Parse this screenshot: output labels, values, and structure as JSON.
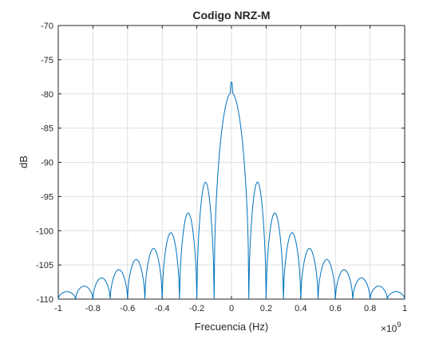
{
  "chart_data": {
    "type": "line",
    "title": "Codigo NRZ-M",
    "xlabel": "Frecuencia (Hz)",
    "ylabel": "dB",
    "x_multiplier_label": "×10",
    "x_multiplier_exponent": "9",
    "xlim": [
      -1,
      1
    ],
    "ylim": [
      -110,
      -70
    ],
    "grid": true,
    "x_ticks": [
      -1,
      -0.8,
      -0.6,
      -0.4,
      -0.2,
      0,
      0.2,
      0.4,
      0.6,
      0.8,
      1
    ],
    "x_tick_labels": [
      "-1",
      "-0.8",
      "-0.6",
      "-0.4",
      "-0.2",
      "0",
      "0.2",
      "0.4",
      "0.6",
      "0.8",
      "1"
    ],
    "y_ticks": [
      -70,
      -75,
      -80,
      -85,
      -90,
      -95,
      -100,
      -105,
      -110
    ],
    "y_tick_labels": [
      "-70",
      "-75",
      "-80",
      "-85",
      "-90",
      "-95",
      "-100",
      "-105",
      "-110"
    ],
    "line_color": "#0072BD",
    "series": [
      {
        "main_lobe_peak": {
          "x": 0,
          "y": -78.3
        },
        "main_lobe_nulls": [
          -0.1,
          0.1
        ],
        "side_lobe_spacing": 0.1,
        "side_lobe_peaks": [
          {
            "x": -0.95,
            "y": -108.9
          },
          {
            "x": -0.85,
            "y": -108.1
          },
          {
            "x": -0.75,
            "y": -106.9
          },
          {
            "x": -0.65,
            "y": -105.7
          },
          {
            "x": -0.55,
            "y": -104.2
          },
          {
            "x": -0.45,
            "y": -102.6
          },
          {
            "x": -0.35,
            "y": -100.3
          },
          {
            "x": -0.25,
            "y": -97.4
          },
          {
            "x": -0.15,
            "y": -92.9
          },
          {
            "x": 0.15,
            "y": -92.9
          },
          {
            "x": 0.25,
            "y": -97.4
          },
          {
            "x": 0.35,
            "y": -100.3
          },
          {
            "x": 0.45,
            "y": -102.6
          },
          {
            "x": 0.55,
            "y": -104.2
          },
          {
            "x": 0.65,
            "y": -105.7
          },
          {
            "x": 0.75,
            "y": -106.9
          },
          {
            "x": 0.85,
            "y": -108.1
          },
          {
            "x": 0.95,
            "y": -108.9
          }
        ]
      }
    ]
  }
}
